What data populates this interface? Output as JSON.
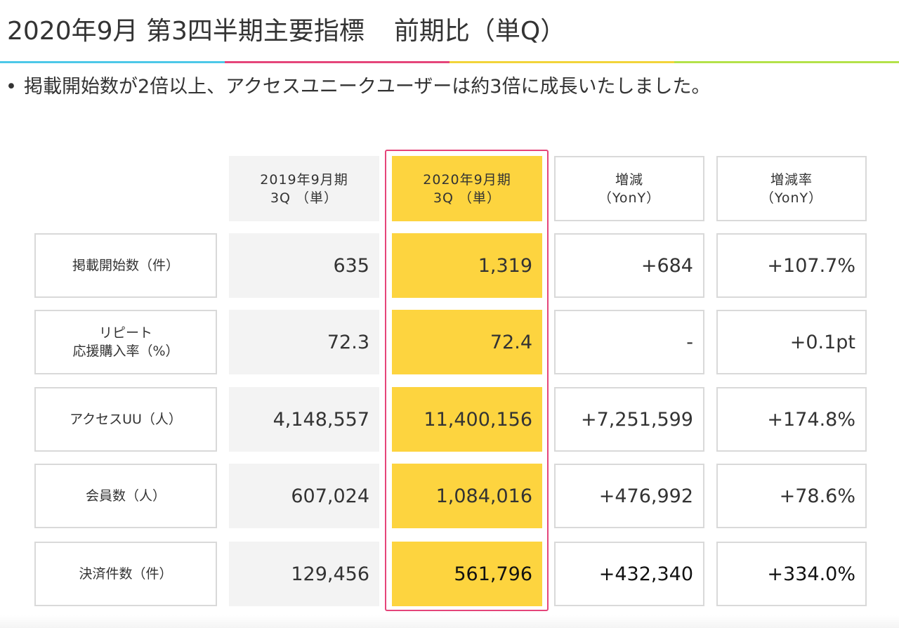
{
  "title": {
    "main": "2020年9月 第3四半期主要指標",
    "sub": "前期比（単Q）"
  },
  "accent_colors": [
    "#4dc8e8",
    "#e5457a",
    "#f2d43a",
    "#b4e24a"
  ],
  "bullet": {
    "dot": "•",
    "text": "掲載開始数が2倍以上、アクセスユニークユーザーは約3倍に成長いたしました。"
  },
  "table": {
    "headers": [
      "2019年9月期\n3Q （単）",
      "2020年9月期\n3Q （単）",
      "増減\n（YonY）",
      "増減率\n（YonY）"
    ],
    "rows": [
      {
        "label": "掲載開始数（件）",
        "prev": "635",
        "curr": "1,319",
        "diff": "+684",
        "rate": "+107.7%"
      },
      {
        "label": "リピート\n応援購入率（%）",
        "prev": "72.3",
        "curr": "72.4",
        "diff": "-",
        "rate": "+0.1pt"
      },
      {
        "label": "アクセスUU（人）",
        "prev": "4,148,557",
        "curr": "11,400,156",
        "diff": "+7,251,599",
        "rate": "+174.8%"
      },
      {
        "label": "会員数（人）",
        "prev": "607,024",
        "curr": "1,084,016",
        "diff": "+476,992",
        "rate": "+78.6%"
      },
      {
        "label": "決済件数（件）",
        "prev": "129,456",
        "curr": "561,796",
        "diff": "+432,340",
        "rate": "+334.0%"
      }
    ],
    "colors": {
      "highlight_fill": "#fdd43f",
      "highlight_border": "#e5457a",
      "prev_fill": "#f3f3f3"
    }
  }
}
